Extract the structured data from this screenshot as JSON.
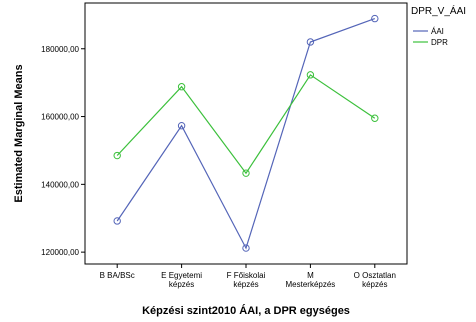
{
  "chart_data": {
    "type": "line",
    "title": "",
    "xlabel": "Képzési szint2010 ÁAI, a DPR egységes",
    "ylabel": "Estimated Marginal Means",
    "categories": [
      [
        "B BA/BSc"
      ],
      [
        "E Egyetemi",
        "képzés"
      ],
      [
        "F Főiskolai",
        "képzés"
      ],
      [
        "M",
        "Mesterképzés"
      ],
      [
        "O Osztatlan",
        "képzés"
      ]
    ],
    "yticks": [
      "120000,00",
      "140000,00",
      "160000,00",
      "180000,00"
    ],
    "ytick_values": [
      120000,
      140000,
      160000,
      180000
    ],
    "ylim": [
      116500,
      193500
    ],
    "grid": false,
    "legend": {
      "title": "DPR_V_ÁAI",
      "position": "right"
    },
    "series": [
      {
        "name": "ÁAI",
        "color": "#5465b8",
        "values": [
          129200,
          157300,
          121200,
          182000,
          188900
        ]
      },
      {
        "name": "DPR",
        "color": "#3cc03c",
        "values": [
          148500,
          168800,
          143300,
          172300,
          159500
        ]
      }
    ]
  }
}
